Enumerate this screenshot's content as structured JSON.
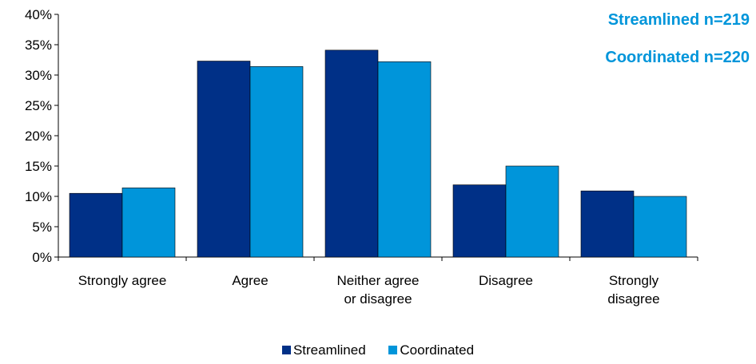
{
  "chart_data": {
    "type": "bar",
    "categories": [
      [
        "Strongly agree"
      ],
      [
        "Agree"
      ],
      [
        "Neither agree",
        "or disagree"
      ],
      [
        "Disagree"
      ],
      [
        "Strongly",
        "disagree"
      ]
    ],
    "series": [
      {
        "name": "Streamlined",
        "color": "#003087",
        "values": [
          10.5,
          32.3,
          34.1,
          11.9,
          10.9
        ]
      },
      {
        "name": "Coordinated",
        "color": "#0095DA",
        "values": [
          11.4,
          31.4,
          32.2,
          15.0,
          10.0
        ]
      }
    ],
    "yticks": [
      "0%",
      "5%",
      "10%",
      "15%",
      "20%",
      "25%",
      "30%",
      "35%",
      "40%"
    ],
    "ylim": [
      0,
      40
    ],
    "legend": "bottom",
    "annotations": [
      "Streamlined n=219",
      "Coordinated n=220"
    ],
    "annotation_color": "#0095DA"
  }
}
